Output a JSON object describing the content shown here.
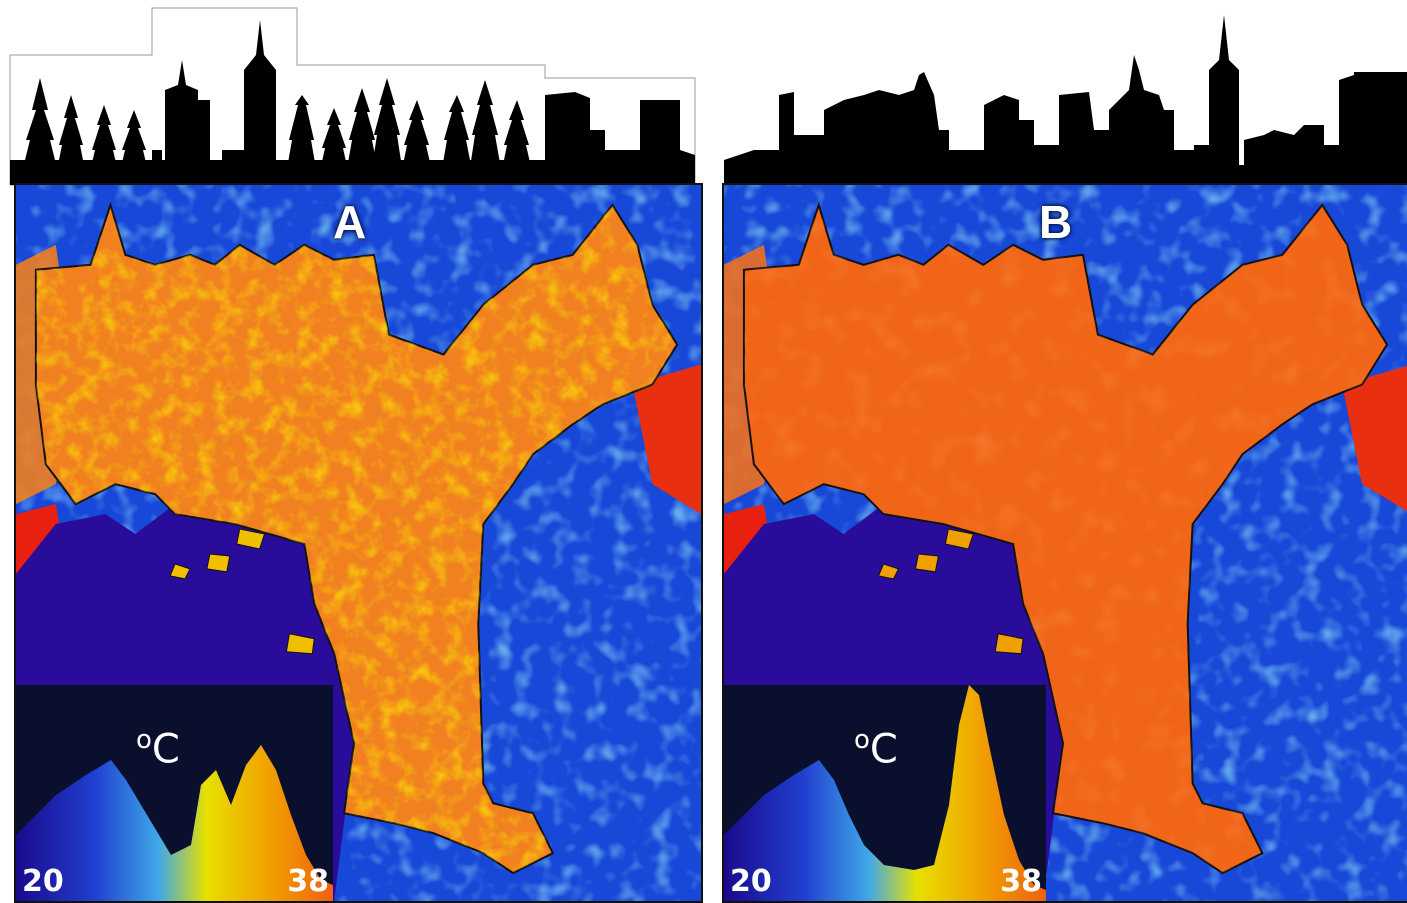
{
  "panels": [
    {
      "id": "A",
      "label": "A",
      "skyline": "mixed-trees-and-buildings",
      "legend": {
        "unit": "C",
        "unit_prefix": "o",
        "min": "20",
        "max": "38"
      }
    },
    {
      "id": "B",
      "label": "B",
      "skyline": "dense-buildings",
      "legend": {
        "unit": "C",
        "unit_prefix": "o",
        "min": "20",
        "max": "38"
      }
    }
  ],
  "colors": {
    "cool_deep": "#1a0a8c",
    "cool": "#1040d8",
    "mid": "#40a8e8",
    "warm": "#f0d000",
    "hot": "#f07010",
    "hottest": "#e82010",
    "outline": "#111111"
  },
  "colorbar": [
    "#1a0a8c",
    "#2040d0",
    "#40a8e8",
    "#e8e000",
    "#f0a000",
    "#f06010"
  ]
}
